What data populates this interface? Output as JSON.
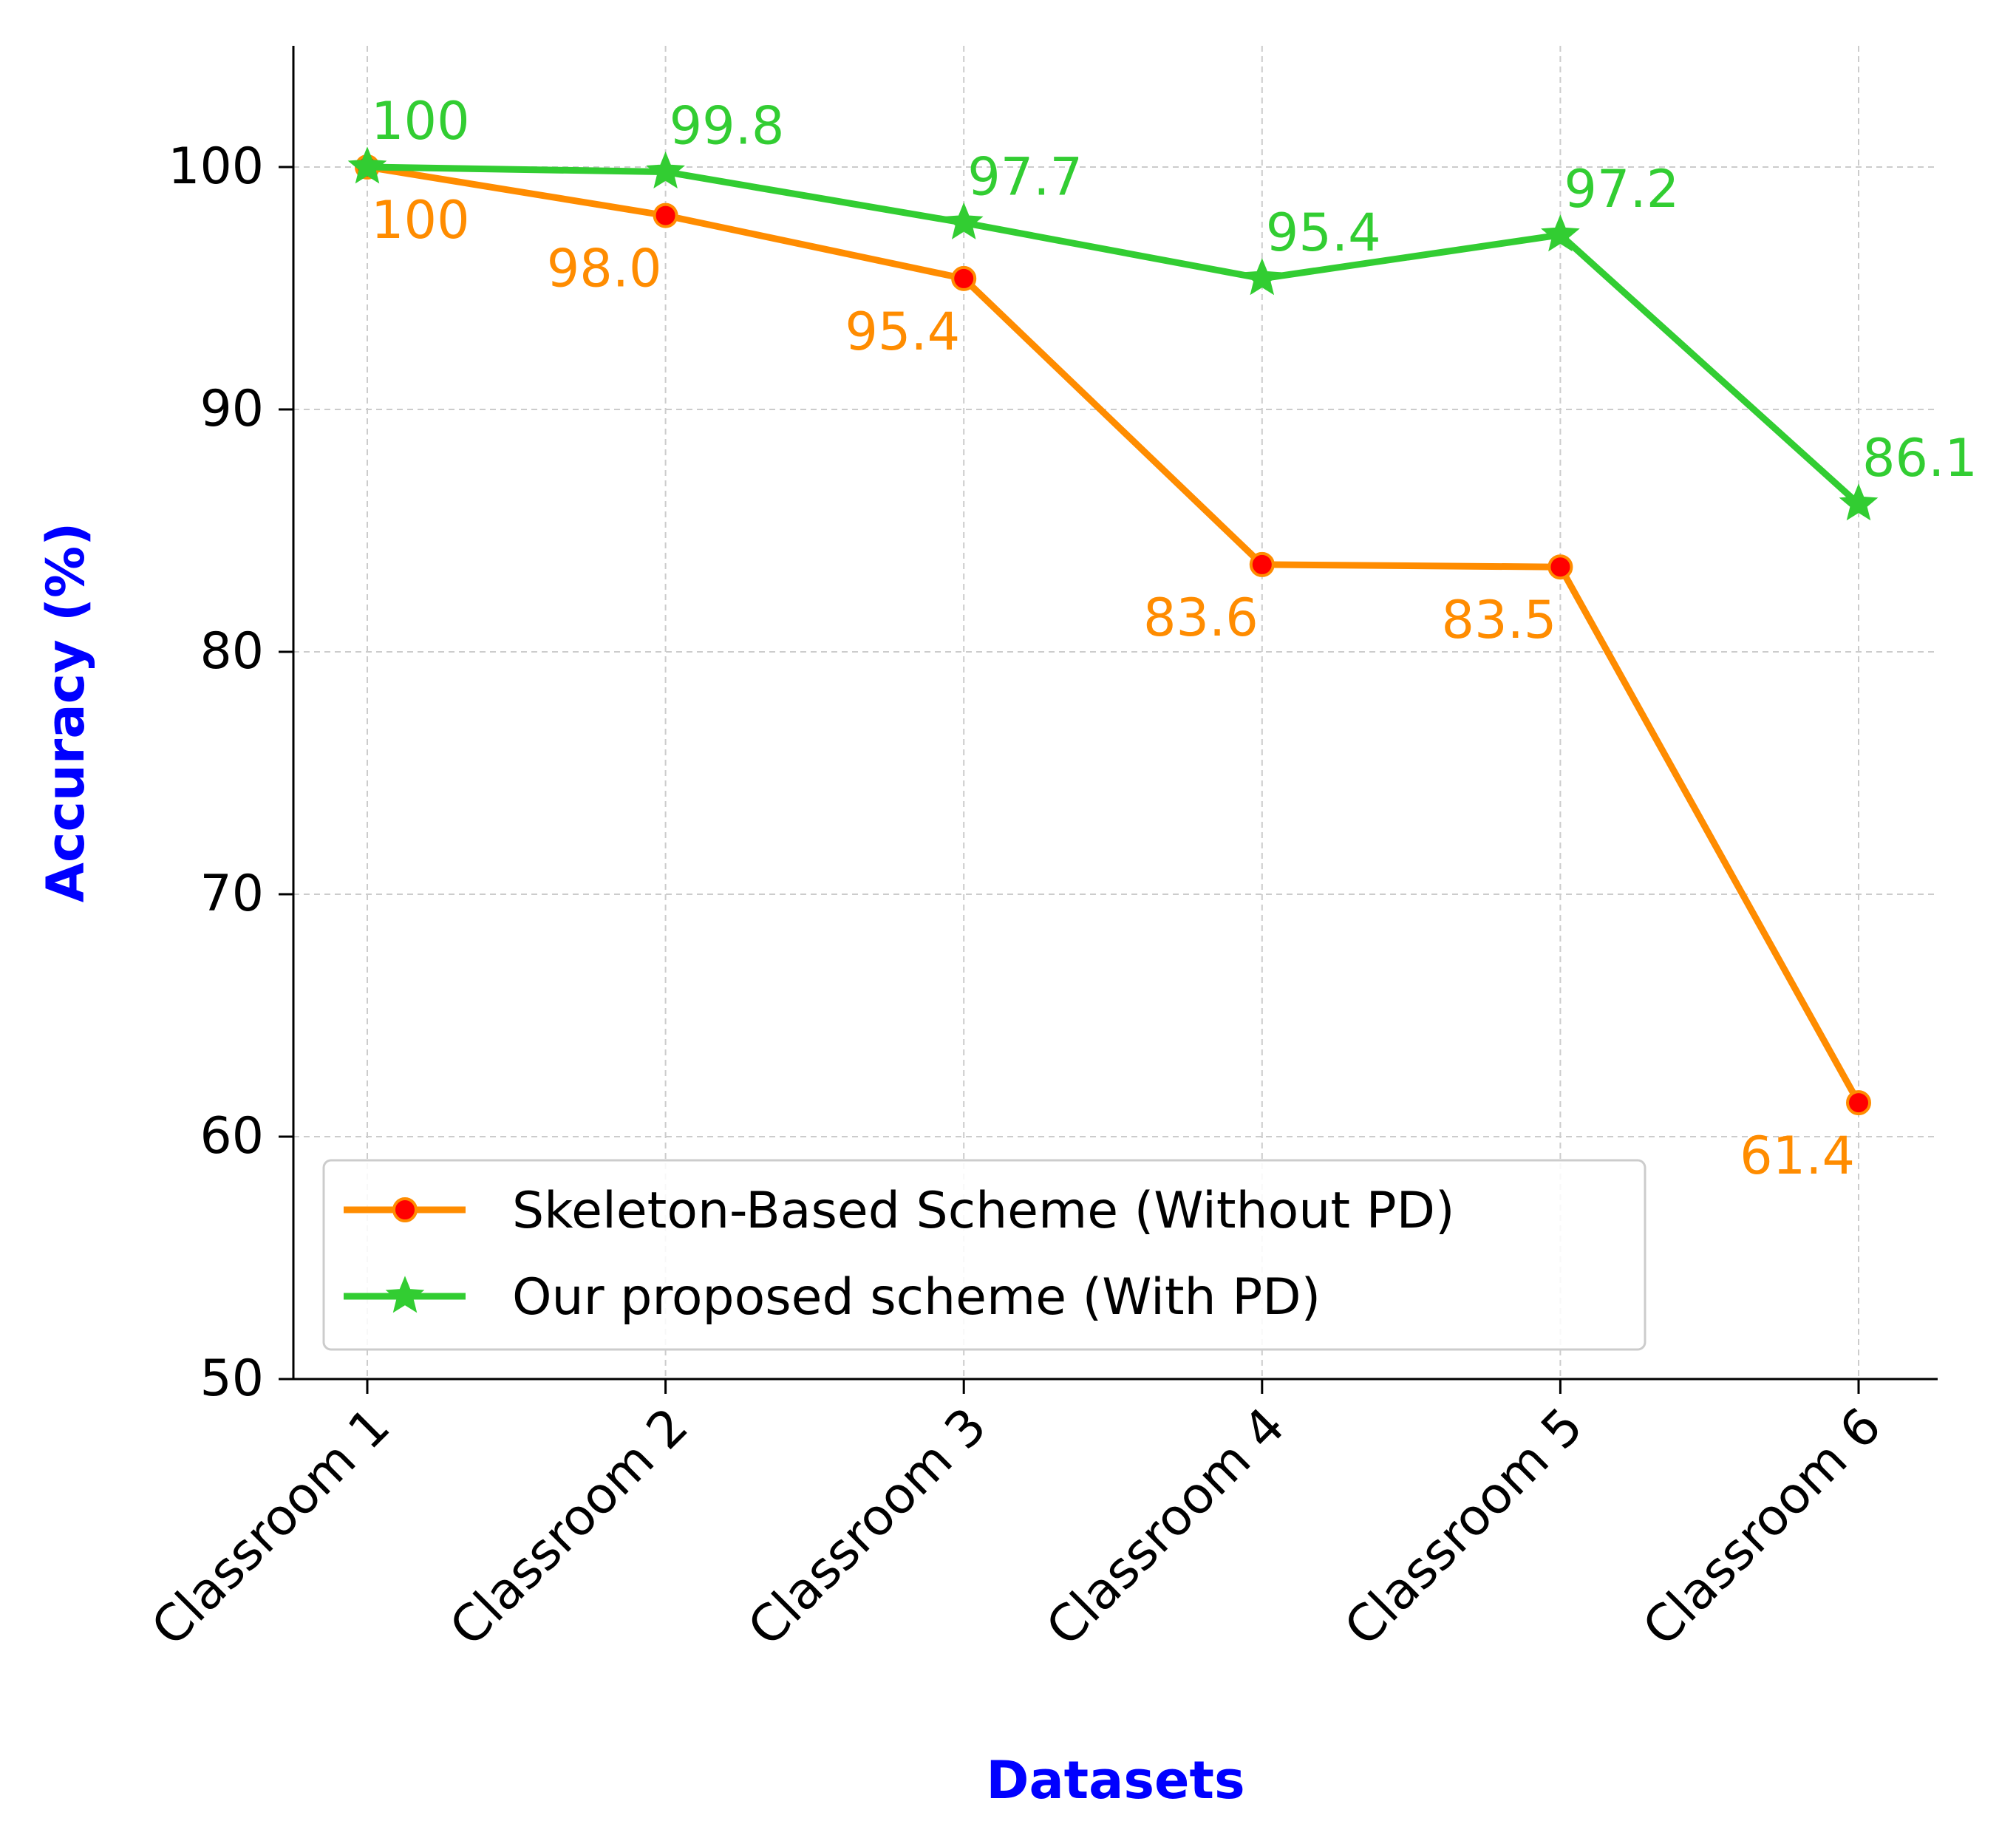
{
  "chart_data": {
    "type": "line",
    "title": "",
    "xlabel": "Datasets",
    "ylabel": "Accuracy (%)",
    "categories": [
      "Classroom 1",
      "Classroom 2",
      "Classroom 3",
      "Classroom 4",
      "Classroom 5",
      "Classroom 6"
    ],
    "ylim": [
      50,
      105
    ],
    "yticks": [
      50,
      60,
      70,
      80,
      90,
      100
    ],
    "grid": true,
    "legend_position": "lower-left",
    "series": [
      {
        "name": "Skeleton-Based Scheme (Without PD)",
        "values": [
          100,
          98.0,
          95.4,
          83.6,
          83.5,
          61.4
        ],
        "labels": [
          "100",
          "98.0",
          "95.4",
          "83.6",
          "83.5",
          "61.4"
        ],
        "color": "#ff8c00",
        "marker": "circle",
        "marker_fill": "#ff0000",
        "label_placement": "below"
      },
      {
        "name": "Our proposed scheme (With PD)",
        "values": [
          100,
          99.8,
          97.7,
          95.4,
          97.2,
          86.1
        ],
        "labels": [
          "100",
          "99.8",
          "97.7",
          "95.4",
          "97.2",
          "86.1"
        ],
        "color": "#32cd32",
        "marker": "star",
        "marker_fill": "#32cd32",
        "label_placement": "above"
      }
    ],
    "axis_title_color": "#0000ff"
  }
}
